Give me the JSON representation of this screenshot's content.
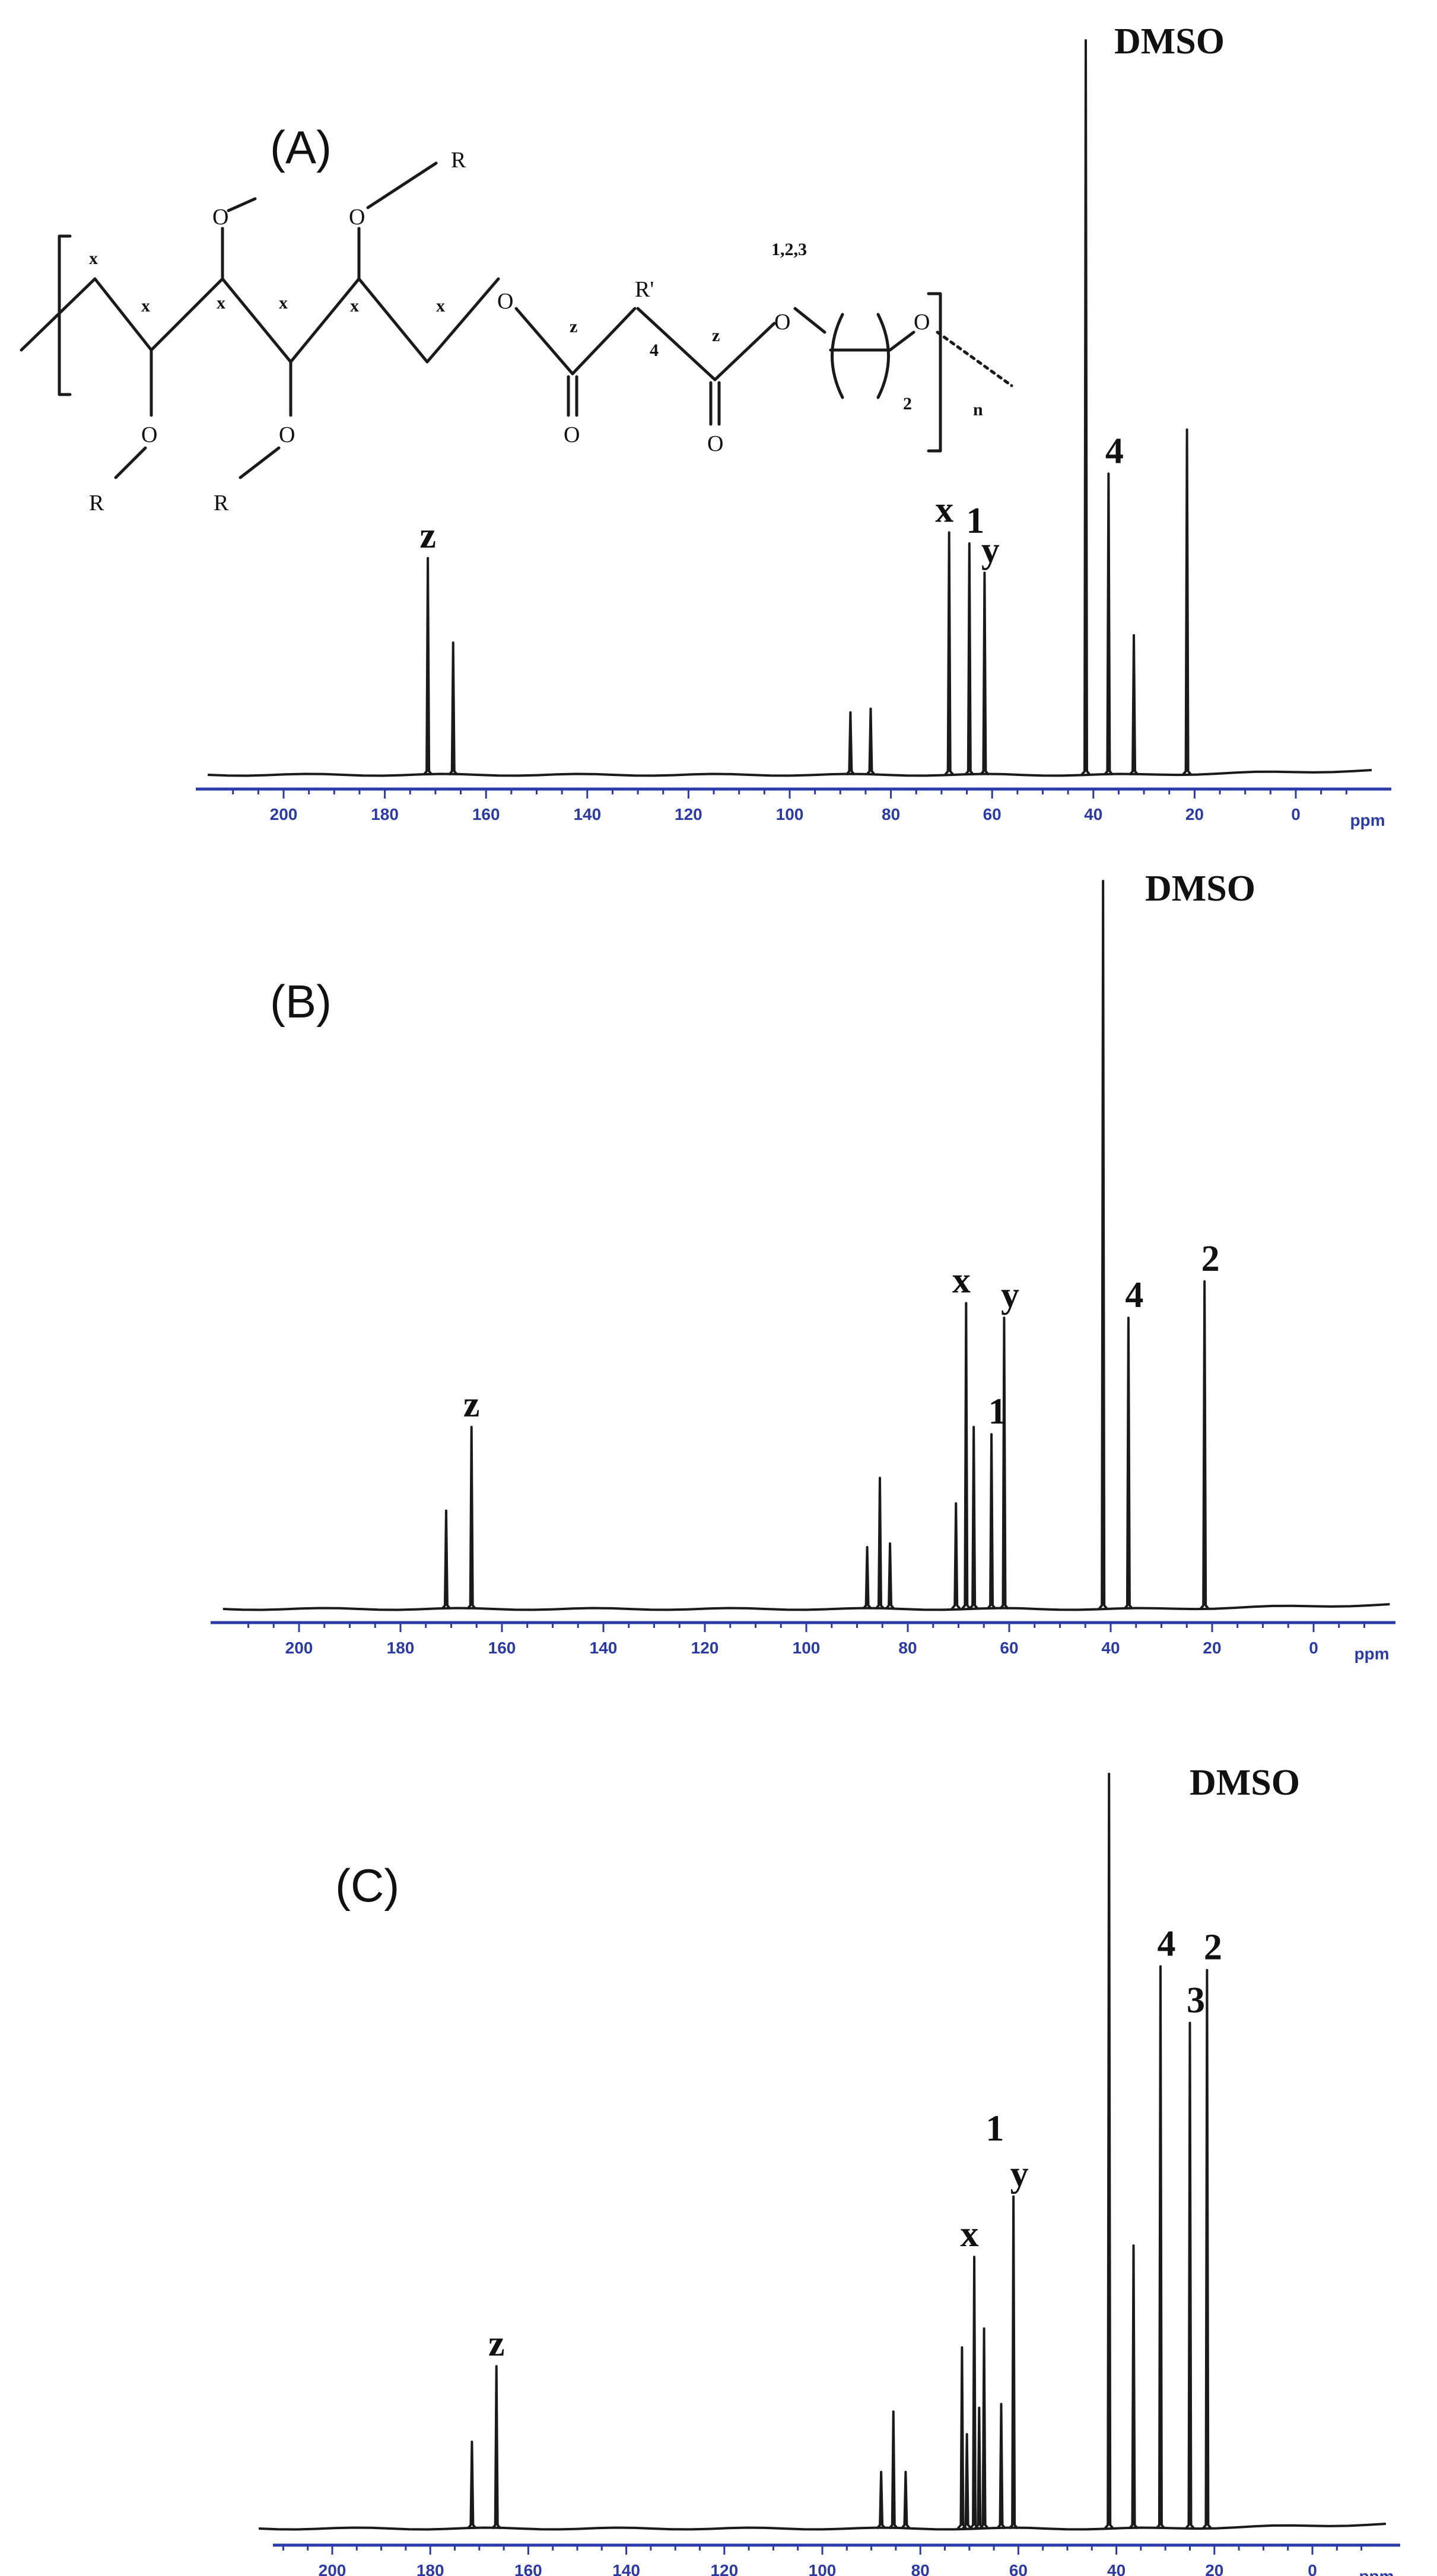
{
  "colors": {
    "spectrum": "#1a1a1a",
    "axis": "#2a3aa8",
    "text": "#111111"
  },
  "structure": {
    "atoms": {
      "o_top1": "O",
      "o_top2": "O",
      "o_bottom1": "O",
      "o_bottom2": "O",
      "o_chain1": "O",
      "o_carbonyl1": "O",
      "o_carbonyl2": "O",
      "o_chain2": "O",
      "o_chain3": "O",
      "r_top": "R",
      "r_bottom1": "R",
      "r_bottom2": "R",
      "r_prime": "R'"
    },
    "position_labels": {
      "x1": "x",
      "x2": "x",
      "x3": "x",
      "x4": "x",
      "x5": "x",
      "x6": "x",
      "z1": "z",
      "z2": "z",
      "four": "4",
      "two": "2",
      "n": "n",
      "one_two_three": "1,2,3"
    }
  },
  "chart_data": [
    {
      "type": "line",
      "panel_label": "(A)",
      "x_unit": "ppm",
      "xlim": [
        215,
        -15
      ],
      "x_ticks": [
        200,
        180,
        160,
        140,
        120,
        100,
        80,
        60,
        40,
        20,
        0
      ],
      "peaks": [
        {
          "ppm": 171.5,
          "height": 0.295
        },
        {
          "ppm": 166.5,
          "height": 0.18
        },
        {
          "ppm": 88.0,
          "height": 0.085
        },
        {
          "ppm": 84.0,
          "height": 0.09
        },
        {
          "ppm": 68.5,
          "height": 0.33
        },
        {
          "ppm": 64.5,
          "height": 0.315
        },
        {
          "ppm": 61.5,
          "height": 0.275
        },
        {
          "ppm": 41.5,
          "height": 1.0
        },
        {
          "ppm": 37.0,
          "height": 0.41
        },
        {
          "ppm": 32.0,
          "height": 0.19
        },
        {
          "ppm": 21.5,
          "height": 0.47
        }
      ],
      "labels": [
        {
          "text": "z",
          "ppm": 171.5
        },
        {
          "text": "x",
          "ppm": 68.5
        },
        {
          "text": "1",
          "ppm": 64.5
        },
        {
          "text": "y",
          "ppm": 61.5
        },
        {
          "text": "DMSO",
          "ppm": 41.5
        },
        {
          "text": "4",
          "ppm": 37.0
        }
      ]
    },
    {
      "type": "line",
      "panel_label": "(B)",
      "x_unit": "ppm",
      "xlim": [
        215,
        -15
      ],
      "x_ticks": [
        200,
        180,
        160,
        140,
        120,
        100,
        80,
        60,
        40,
        20,
        0
      ],
      "peaks": [
        {
          "ppm": 171.0,
          "height": 0.135
        },
        {
          "ppm": 166.0,
          "height": 0.25
        },
        {
          "ppm": 88.0,
          "height": 0.085
        },
        {
          "ppm": 85.5,
          "height": 0.18
        },
        {
          "ppm": 83.5,
          "height": 0.09
        },
        {
          "ppm": 70.5,
          "height": 0.145
        },
        {
          "ppm": 68.5,
          "height": 0.42
        },
        {
          "ppm": 67.0,
          "height": 0.25
        },
        {
          "ppm": 63.5,
          "height": 0.24
        },
        {
          "ppm": 61.0,
          "height": 0.4
        },
        {
          "ppm": 41.5,
          "height": 1.0
        },
        {
          "ppm": 36.5,
          "height": 0.4
        },
        {
          "ppm": 21.5,
          "height": 0.45
        }
      ],
      "labels": [
        {
          "text": "z",
          "ppm": 166.0
        },
        {
          "text": "x",
          "ppm": 68.5
        },
        {
          "text": "1",
          "ppm": 63.5
        },
        {
          "text": "y",
          "ppm": 61.0
        },
        {
          "text": "DMSO",
          "ppm": 41.5
        },
        {
          "text": "4",
          "ppm": 36.5
        },
        {
          "text": "2",
          "ppm": 21.5
        }
      ]
    },
    {
      "type": "line",
      "panel_label": "(C)",
      "x_unit": "ppm",
      "xlim": [
        215,
        -15
      ],
      "x_ticks": [
        200,
        180,
        160,
        140,
        120,
        100,
        80,
        60,
        40,
        20,
        0
      ],
      "peaks": [
        {
          "ppm": 171.5,
          "height": 0.115
        },
        {
          "ppm": 166.5,
          "height": 0.215
        },
        {
          "ppm": 88.0,
          "height": 0.075
        },
        {
          "ppm": 85.5,
          "height": 0.155
        },
        {
          "ppm": 83.0,
          "height": 0.075
        },
        {
          "ppm": 71.5,
          "height": 0.24
        },
        {
          "ppm": 70.5,
          "height": 0.125
        },
        {
          "ppm": 69.0,
          "height": 0.36
        },
        {
          "ppm": 68.0,
          "height": 0.16
        },
        {
          "ppm": 67.0,
          "height": 0.265
        },
        {
          "ppm": 63.5,
          "height": 0.165
        },
        {
          "ppm": 61.0,
          "height": 0.44
        },
        {
          "ppm": 41.5,
          "height": 1.0
        },
        {
          "ppm": 36.5,
          "height": 0.375
        },
        {
          "ppm": 31.0,
          "height": 0.745
        },
        {
          "ppm": 25.0,
          "height": 0.67
        },
        {
          "ppm": 21.5,
          "height": 0.74
        }
      ],
      "labels": [
        {
          "text": "z",
          "ppm": 166.5
        },
        {
          "text": "x",
          "ppm": 69.0
        },
        {
          "text": "1",
          "ppm": 66.0
        },
        {
          "text": "y",
          "ppm": 61.0
        },
        {
          "text": "DMSO",
          "ppm": 41.5
        },
        {
          "text": "4",
          "ppm": 31.0
        },
        {
          "text": "3",
          "ppm": 25.0
        },
        {
          "text": "2",
          "ppm": 21.5
        }
      ]
    }
  ]
}
